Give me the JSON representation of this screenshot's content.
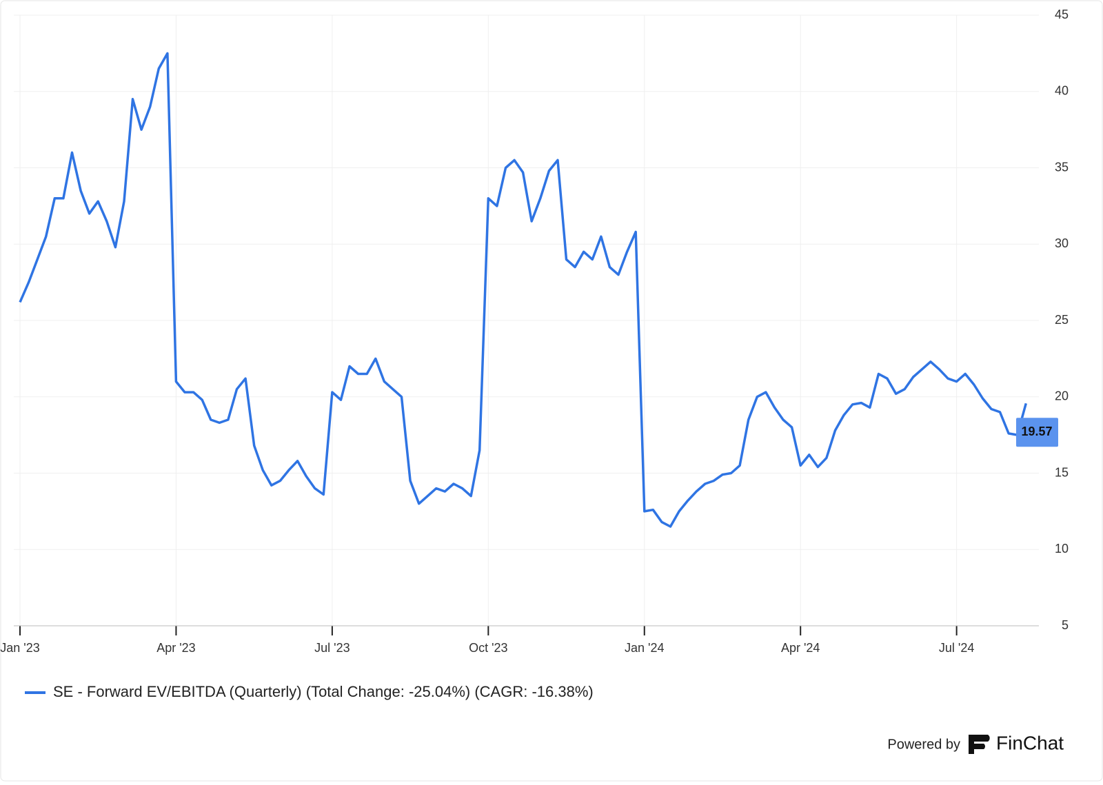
{
  "chart_data": {
    "type": "line",
    "categories": [
      "Jan '23",
      null,
      null,
      null,
      null,
      null,
      null,
      null,
      null,
      null,
      null,
      null,
      null,
      null,
      null,
      null,
      null,
      null,
      "Apr '23",
      null,
      null,
      null,
      null,
      null,
      null,
      null,
      null,
      null,
      null,
      null,
      null,
      null,
      null,
      null,
      null,
      null,
      "Jul '23",
      null,
      null,
      null,
      null,
      null,
      null,
      null,
      null,
      null,
      null,
      null,
      null,
      null,
      null,
      null,
      null,
      null,
      "Oct '23",
      null,
      null,
      null,
      null,
      null,
      null,
      null,
      null,
      null,
      null,
      null,
      null,
      null,
      null,
      null,
      null,
      null,
      "Jan '24",
      null,
      null,
      null,
      null,
      null,
      null,
      null,
      null,
      null,
      null,
      null,
      null,
      null,
      null,
      null,
      null,
      null,
      "Apr '24",
      null,
      null,
      null,
      null,
      null,
      null,
      null,
      null,
      null,
      null,
      null,
      null,
      null,
      null,
      null,
      null,
      null,
      "Jul '24",
      null,
      null,
      null,
      null,
      null,
      null,
      null,
      null
    ],
    "series": [
      {
        "name": "SE - Forward EV/EBITDA (Quarterly) (Total Change: -25.04%) (CAGR: -16.38%)",
        "color": "#2f74e3",
        "values": [
          26.2,
          27.5,
          29,
          30.5,
          33,
          33,
          36,
          33.5,
          32,
          32.8,
          31.5,
          29.8,
          32.8,
          39.5,
          37.5,
          39,
          41.5,
          42.5,
          21,
          20.3,
          20.3,
          19.8,
          18.5,
          18.3,
          18.5,
          20.5,
          21.2,
          16.8,
          15.2,
          14.2,
          14.5,
          15.2,
          15.8,
          14.8,
          14,
          13.6,
          20.3,
          19.8,
          22,
          21.5,
          21.5,
          22.5,
          21,
          20.5,
          20,
          14.5,
          13,
          13.5,
          14,
          13.8,
          14.3,
          14,
          13.5,
          16.5,
          33,
          32.5,
          35,
          35.5,
          34.7,
          31.5,
          33,
          34.8,
          35.5,
          29,
          28.5,
          29.5,
          29,
          30.5,
          28.5,
          28,
          29.5,
          30.8,
          12.5,
          12.6,
          11.8,
          11.5,
          12.5,
          13.2,
          13.8,
          14.3,
          14.5,
          14.9,
          15,
          15.5,
          18.5,
          20,
          20.3,
          19.3,
          18.5,
          18,
          15.5,
          16.2,
          15.4,
          16,
          17.8,
          18.8,
          19.5,
          19.6,
          19.3,
          21.5,
          21.2,
          20.2,
          20.5,
          21.3,
          21.8,
          22.3,
          21.8,
          21.2,
          21,
          21.5,
          20.8,
          19.9,
          19.2,
          19,
          17.6,
          17.5,
          19.57
        ]
      }
    ],
    "ylim": [
      5,
      45
    ],
    "yticks": [
      5,
      10,
      15,
      20,
      25,
      30,
      35,
      40,
      45
    ],
    "grid": true,
    "last_value_label": true
  },
  "branding": {
    "powered_by": "Powered by",
    "name": "FinChat"
  }
}
